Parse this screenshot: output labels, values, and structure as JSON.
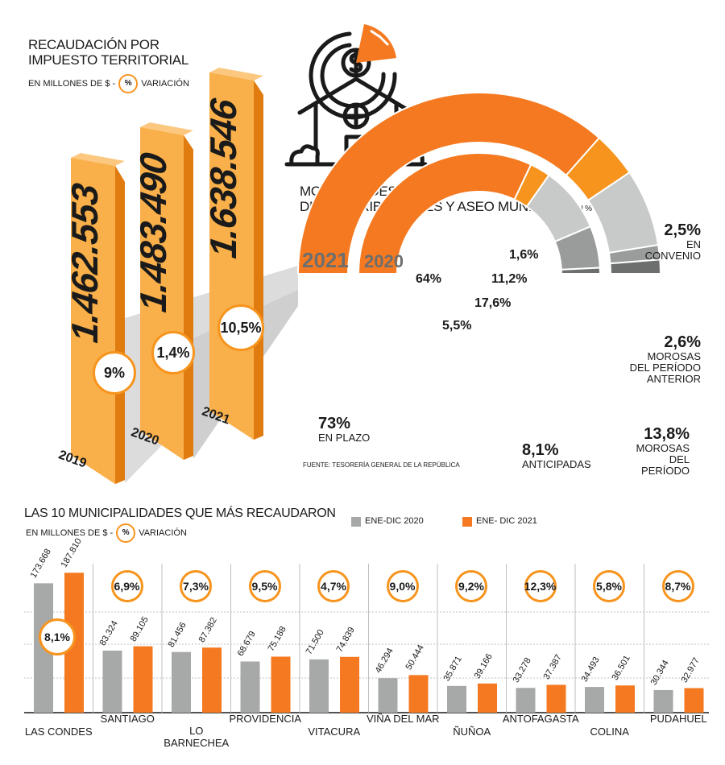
{
  "top_left": {
    "title_line1": "RECAUDACIÓN POR",
    "title_line2": "IMPUESTO TERRITORIAL",
    "unit_text": "EN MILLONES DE $ -",
    "pct_symbol": "%",
    "variation_text": "VARIACIÓN"
  },
  "chart_data": [
    {
      "type": "bar",
      "title": "RECAUDACIÓN POR IMPUESTO TERRITORIAL",
      "subtitle": "EN MILLONES DE $ - % VARIACIÓN",
      "categories": [
        "2019",
        "2020",
        "2021"
      ],
      "values": [
        1462553,
        1483490,
        1638546
      ],
      "value_labels": [
        "1.462.553",
        "1.483.490",
        "1.638.546"
      ],
      "variation_labels": [
        "9%",
        "1,4%",
        "10,5%"
      ],
      "color": "#f7941d"
    },
    {
      "type": "pie",
      "title": "MODALIDADES DE PAGO DE CONTRIBUCIONES Y ASEO MUNICIPAL",
      "unit": "EN % DEL TOTAL",
      "series": [
        {
          "name": "2021",
          "labels": [
            "EN PLAZO",
            "ANTICIPADAS",
            "MOROSAS DEL PERÍODO",
            "MOROSAS DEL PERÍODO ANTERIOR",
            "EN CONVENIO"
          ],
          "values": [
            73,
            8.1,
            13.8,
            2.6,
            2.5
          ]
        },
        {
          "name": "2020",
          "labels": [
            "EN PLAZO",
            "ANTICIPADAS",
            "MOROSAS DEL PERÍODO",
            "MOROSAS DEL PERÍODO ANTERIOR",
            "EN CONVENIO"
          ],
          "values": [
            64,
            5.5,
            17.6,
            11.2,
            1.6
          ]
        }
      ],
      "colors": [
        "#f47920",
        "#f7941d",
        "#c8c9c9",
        "#9a9b9b",
        "#6d6e6e"
      ]
    },
    {
      "type": "bar",
      "title": "LAS 10 MUNICIPALIDADES QUE MÁS RECAUDARON",
      "subtitle": "EN MILLONES DE $ - % VARIACIÓN",
      "categories": [
        "LAS CONDES",
        "SANTIAGO",
        "LO BARNECHEA",
        "PROVIDENCIA",
        "VITACURA",
        "VIÑA DEL MAR",
        "ÑUÑOA",
        "ANTOFAGASTA",
        "COLINA",
        "PUDAHUEL"
      ],
      "series": [
        {
          "name": "ENE-DIC 2020",
          "values": [
            173668,
            83324,
            81456,
            68679,
            71500,
            46294,
            35871,
            33278,
            34493,
            30344
          ],
          "color": "#a7a9a9"
        },
        {
          "name": "ENE- DIC 2021",
          "values": [
            187810,
            89105,
            87382,
            75188,
            74839,
            50444,
            39166,
            37387,
            36501,
            32977
          ],
          "color": "#f47920"
        }
      ],
      "value_labels_2020": [
        "173.668",
        "83.324",
        "81.456",
        "68.679",
        "71.500",
        "46.294",
        "35.871",
        "33.278",
        "34.493",
        "30.344"
      ],
      "value_labels_2021": [
        "187.810",
        "89.105",
        "87.382",
        "75.188",
        "74.839",
        "50.444",
        "39.166",
        "37.387",
        "36.501",
        "32.977"
      ],
      "variation_labels": [
        "8,1%",
        "6,9%",
        "7,3%",
        "9,5%",
        "4,7%",
        "9,0%",
        "9,2%",
        "12,3%",
        "5,8%",
        "8,7%"
      ],
      "grid": true
    }
  ],
  "donut_text": {
    "title_line1": "MODALIDADES DE PAGO",
    "title_line2": "DE CONTRIBUCIONES Y ASEO MUNICIPAL",
    "unit": "EN % DEL TOTAL",
    "year_2021": "2021",
    "year_2020": "2020",
    "l_64": "64%",
    "l_16": "1,6%",
    "l_112": "11,2%",
    "l_176": "17,6%",
    "l_55": "5,5%",
    "l_73": "73%",
    "l_73_name": "EN PLAZO",
    "l_81": "8,1%",
    "l_81_name": "ANTICIPADAS",
    "l_25": "2,5%",
    "l_25_name1": "EN",
    "l_25_name2": "CONVENIO",
    "l_26": "2,6%",
    "l_26_name1": "MOROSAS",
    "l_26_name2": "DEL PERÍODO",
    "l_26_name3": "ANTERIOR",
    "l_138": "13,8%",
    "l_138_name1": "MOROSAS",
    "l_138_name2": "DEL PERÍODO",
    "source": "FUENTE: TESORERÍA GENERAL DE LA REPÚBLICA"
  },
  "bottom": {
    "title": "LAS 10 MUNICIPALIDADES QUE MÁS RECAUDARON",
    "unit_text": "EN MILLONES DE $ -",
    "pct_symbol": "%",
    "variation_text": "VARIACIÓN",
    "legend_2020": "ENE-DIC 2020",
    "legend_2021": "ENE- DIC 2021"
  },
  "colors": {
    "orange": "#f47920",
    "light_orange": "#f7941d",
    "grey": "#a7a9a9",
    "dark": "#1a1a1a"
  }
}
